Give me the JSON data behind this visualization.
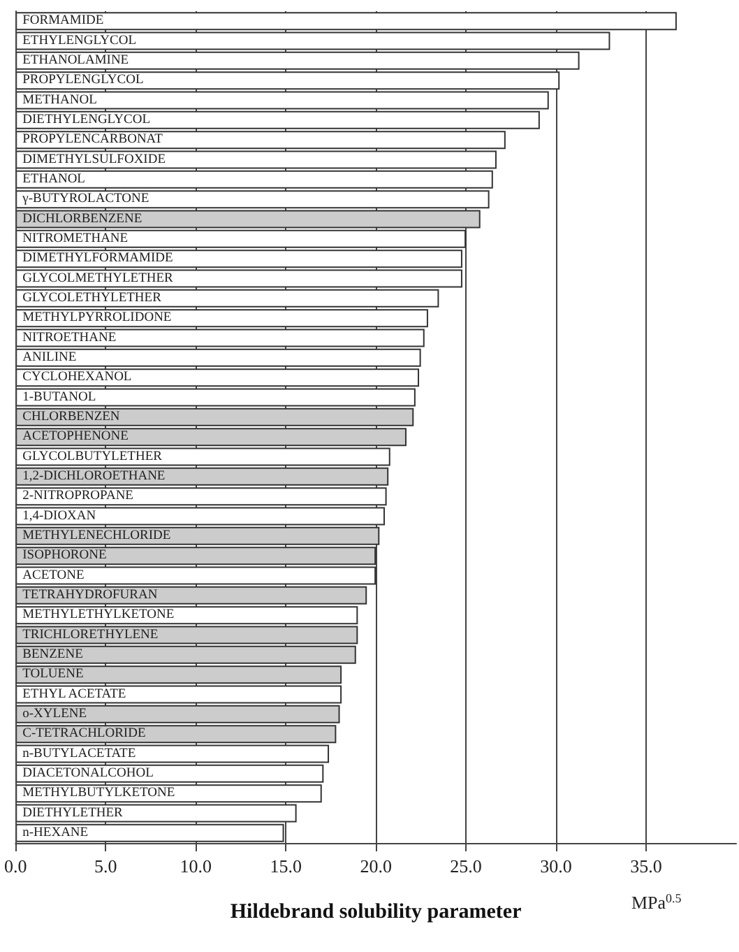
{
  "chart_data": {
    "type": "bar",
    "orientation": "horizontal",
    "xlabel": "Hildebrand solubility parameter",
    "annotations": [
      "MPa$^{0.5}$"
    ],
    "categories": [
      "FORMAMIDE",
      "ETHYLENGLYCOL",
      "ETHANOLAMINE",
      "PROPYLENGLYCOL",
      "METHANOL",
      "DIETHYLENGLYCOL",
      "PROPYLENCARBONAT",
      "DIMETHYLSULFOXIDE",
      "ETHANOL",
      "γ-BUTYROLACTONE",
      "DICHLORBENZENE",
      "NITROMETHANE",
      "DIMETHYLFORMAMIDE",
      "GLYCOLMETHYLETHER",
      "GLYCOLETHYLETHER",
      "METHYLPYRROLIDONE",
      "NITROETHANE",
      "ANILINE",
      "CYCLOHEXANOL",
      "1-BUTANOL",
      "CHLORBENZEN",
      "ACETOPHENONE",
      "GLYCOLBUTYLETHER",
      "1,2-DICHLOROETHANE",
      "2-NITROPROPANE",
      "1,4-DIOXAN",
      "METHYLENECHLORIDE",
      "ISOPHORONE",
      "ACETONE",
      "TETRAHYDROFURAN",
      "METHYLETHYLKETONE",
      "TRICHLORETHYLENE",
      "BENZENE",
      "TOLUENE",
      "ETHYL ACETATE",
      "o-XYLENE",
      "C-TETRACHLORIDE",
      "n-BUTYLACETATE",
      "DIACETONALCOHOL",
      "METHYLBUTYLKETONE",
      "DIETHYLETHER",
      "n-HEXANE"
    ],
    "values": [
      36.7,
      33.0,
      31.3,
      30.2,
      29.6,
      29.1,
      27.2,
      26.7,
      26.5,
      26.3,
      25.8,
      25.0,
      24.8,
      24.8,
      23.5,
      22.9,
      22.7,
      22.5,
      22.4,
      22.2,
      22.1,
      21.7,
      20.8,
      20.7,
      20.6,
      20.5,
      20.2,
      20.0,
      20.0,
      19.5,
      19.0,
      19.0,
      18.9,
      18.1,
      18.1,
      18.0,
      17.8,
      17.4,
      17.1,
      17.0,
      15.6,
      14.9
    ],
    "colors": [
      "#ffffff",
      "#ffffff",
      "#ffffff",
      "#ffffff",
      "#ffffff",
      "#ffffff",
      "#ffffff",
      "#ffffff",
      "#ffffff",
      "#ffffff",
      "#cccccc",
      "#ffffff",
      "#ffffff",
      "#ffffff",
      "#ffffff",
      "#ffffff",
      "#ffffff",
      "#ffffff",
      "#ffffff",
      "#ffffff",
      "#cccccc",
      "#cccccc",
      "#ffffff",
      "#cccccc",
      "#ffffff",
      "#ffffff",
      "#cccccc",
      "#cccccc",
      "#ffffff",
      "#cccccc",
      "#ffffff",
      "#cccccc",
      "#cccccc",
      "#cccccc",
      "#ffffff",
      "#cccccc",
      "#cccccc",
      "#ffffff",
      "#ffffff",
      "#ffffff",
      "#ffffff",
      "#ffffff"
    ],
    "xlim": [
      0,
      40
    ],
    "xticks": [
      {
        "value": 0,
        "label": "0.0"
      },
      {
        "value": 5,
        "label": "5.0"
      },
      {
        "value": 10,
        "label": "10.0"
      },
      {
        "value": 15,
        "label": "15.0"
      },
      {
        "value": 20,
        "label": "20.0"
      },
      {
        "value": 25,
        "label": "25.0"
      },
      {
        "value": 30,
        "label": "30.0"
      },
      {
        "value": 35,
        "label": "35.0"
      }
    ],
    "grid": "x"
  }
}
